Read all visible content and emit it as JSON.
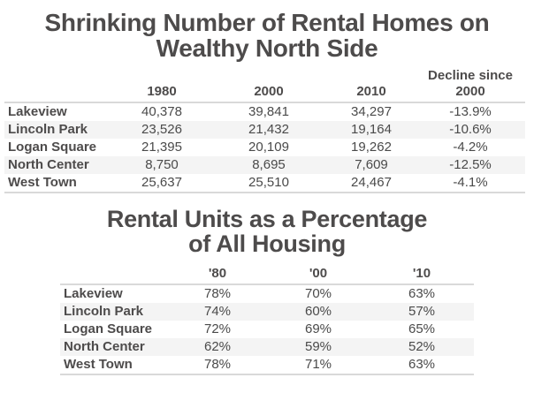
{
  "table1": {
    "title_lines": [
      "Shrinking Number of Rental Homes on",
      "Wealthy North Side"
    ],
    "columns": [
      "",
      "1980",
      "2000",
      "2010",
      "Decline since 2000"
    ],
    "header_decline_lines": [
      "Decline since",
      "2000"
    ],
    "rows": [
      {
        "name": "Lakeview",
        "v1980": "40,378",
        "v2000": "39,841",
        "v2010": "34,297",
        "decline": "-13.9%"
      },
      {
        "name": "Lincoln Park",
        "v1980": "23,526",
        "v2000": "21,432",
        "v2010": "19,164",
        "decline": "-10.6%"
      },
      {
        "name": "Logan Square",
        "v1980": "21,395",
        "v2000": "20,109",
        "v2010": "19,262",
        "decline": "-4.2%"
      },
      {
        "name": "North Center",
        "v1980": "8,750",
        "v2000": "8,695",
        "v2010": "7,609",
        "decline": "-12.5%"
      },
      {
        "name": "West Town",
        "v1980": "25,637",
        "v2000": "25,510",
        "v2010": "24,467",
        "decline": "-4.1%"
      }
    ]
  },
  "table2": {
    "title_lines": [
      "Rental Units as a Percentage",
      "of All Housing"
    ],
    "columns": [
      "",
      "'80",
      "'00",
      "'10"
    ],
    "rows": [
      {
        "name": "Lakeview",
        "p80": "78%",
        "p00": "70%",
        "p10": "63%"
      },
      {
        "name": "Lincoln Park",
        "p80": "74%",
        "p00": "60%",
        "p10": "57%"
      },
      {
        "name": "Logan Square",
        "p80": "72%",
        "p00": "69%",
        "p10": "65%"
      },
      {
        "name": "North Center",
        "p80": "62%",
        "p00": "59%",
        "p10": "52%"
      },
      {
        "name": "West Town",
        "p80": "78%",
        "p00": "71%",
        "p10": "63%"
      }
    ]
  },
  "colors": {
    "text": "#4a4a4a",
    "title": "#4d4b4b",
    "row_alt": "#f4f4f4",
    "rule": "#d9d9d9"
  }
}
